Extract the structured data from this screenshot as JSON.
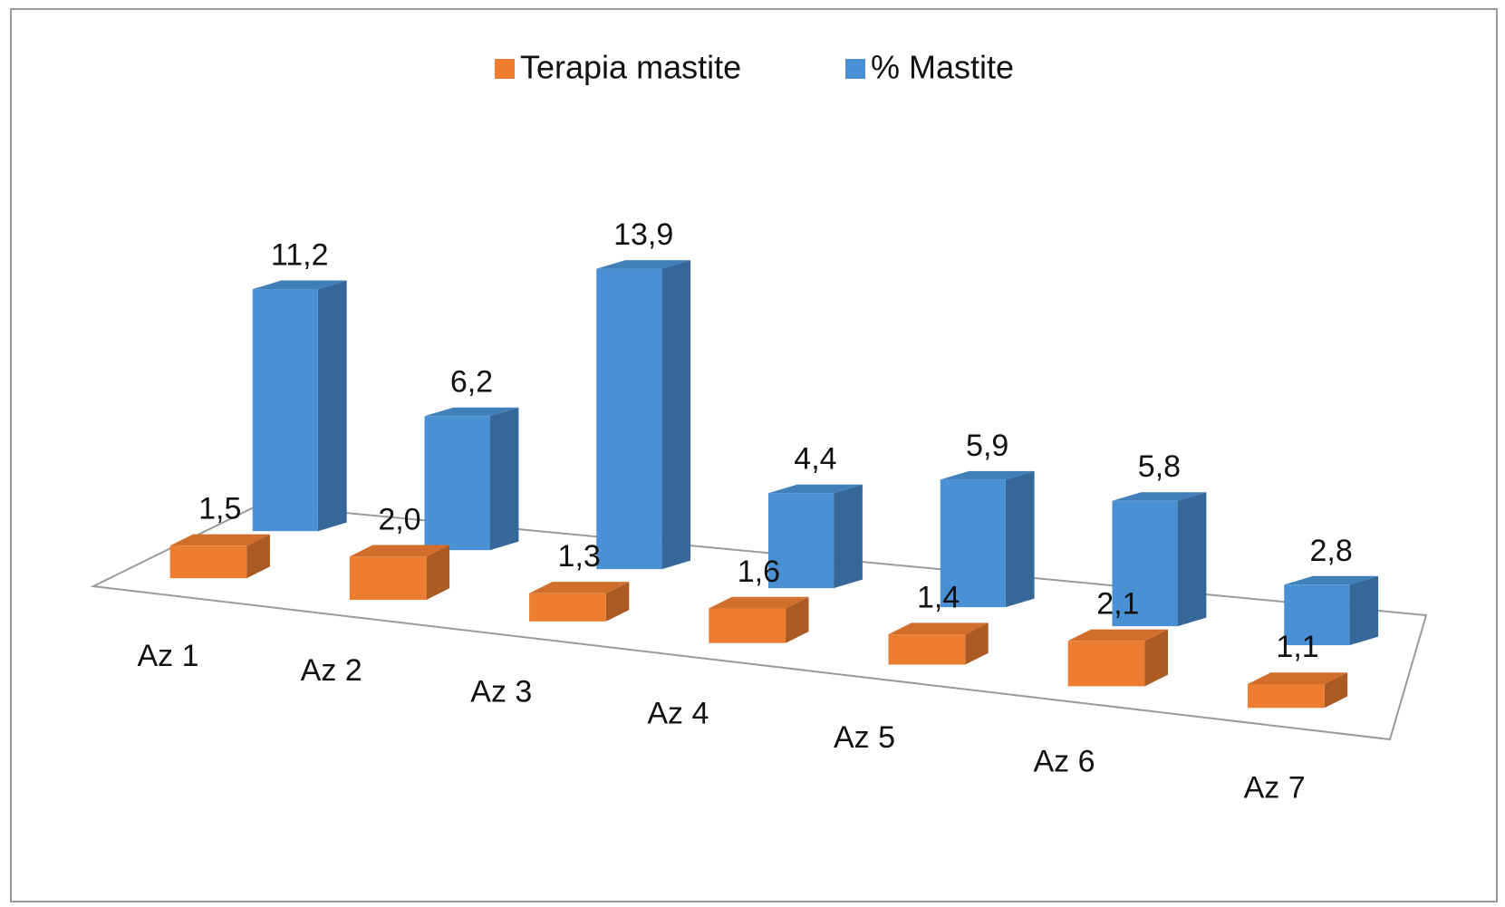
{
  "chart_data": {
    "type": "bar3d",
    "categories": [
      "Az 1",
      "Az 2",
      "Az 3",
      "Az 4",
      "Az 5",
      "Az 6",
      "Az 7"
    ],
    "series": [
      {
        "name": "Terapia mastite",
        "color": "#ed7d31",
        "values": [
          1.5,
          2.0,
          1.3,
          1.6,
          1.4,
          2.1,
          1.1
        ],
        "value_labels": [
          "1,5",
          "2,0",
          "1,3",
          "1,6",
          "1,4",
          "2,1",
          "1,1"
        ]
      },
      {
        "name": "% Mastite",
        "color": "#4a90d4",
        "values": [
          11.2,
          6.2,
          13.9,
          4.4,
          5.9,
          5.8,
          2.8
        ],
        "value_labels": [
          "11,2",
          "6,2",
          "13,9",
          "4,4",
          "5,9",
          "5,8",
          "2,8"
        ]
      }
    ],
    "legend": "top"
  }
}
